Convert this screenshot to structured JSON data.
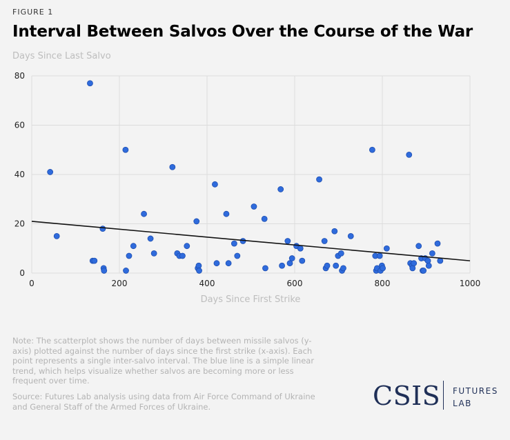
{
  "figure_label": "FIGURE 1",
  "title": "Interval Between Salvos Over the Course of the War",
  "note": "Note: The scatterplot shows the number of days between missile salvos (y-axis) plotted against the number of days since the first strike (x-axis). Each point represents a single inter-salvo interval. The blue line is a simple linear trend, which helps visualize whether salvos are becoming more or less frequent over time.",
  "source": "Source: Futures Lab analysis using data from Air Force Command of Ukraine and General Staff of the Armed Forces of Ukraine.",
  "logo": {
    "main": "CSIS",
    "line1": "FUTURES",
    "line2": "LAB"
  },
  "colors": {
    "point": "#2f6bdc",
    "point_stroke": "#1f4fb0",
    "trend": "#111111",
    "grid": "#dcdcdc",
    "axis_label": "#bdbdbd"
  },
  "chart_data": {
    "type": "scatter",
    "xlabel": "Days Since First Strike",
    "ylabel": "Days Since Last Salvo",
    "xlim": [
      0,
      1000
    ],
    "ylim": [
      0,
      80
    ],
    "xticks": [
      0,
      200,
      400,
      600,
      800,
      1000
    ],
    "yticks": [
      0,
      20,
      40,
      60,
      80
    ],
    "grid": true,
    "trend_line": {
      "x": [
        0,
        1000
      ],
      "y": [
        21,
        5
      ]
    },
    "points": [
      [
        42,
        41
      ],
      [
        57,
        15
      ],
      [
        133,
        77
      ],
      [
        139,
        5
      ],
      [
        143,
        5
      ],
      [
        162,
        18
      ],
      [
        164,
        2
      ],
      [
        165,
        1
      ],
      [
        214,
        50
      ],
      [
        215,
        1
      ],
      [
        222,
        7
      ],
      [
        232,
        11
      ],
      [
        256,
        24
      ],
      [
        271,
        14
      ],
      [
        279,
        8
      ],
      [
        321,
        43
      ],
      [
        332,
        8
      ],
      [
        337,
        7
      ],
      [
        344,
        7
      ],
      [
        354,
        11
      ],
      [
        376,
        21
      ],
      [
        379,
        2
      ],
      [
        381,
        3
      ],
      [
        382,
        1
      ],
      [
        418,
        36
      ],
      [
        422,
        4
      ],
      [
        444,
        24
      ],
      [
        449,
        4
      ],
      [
        462,
        12
      ],
      [
        469,
        7
      ],
      [
        482,
        13
      ],
      [
        507,
        27
      ],
      [
        531,
        22
      ],
      [
        533,
        2
      ],
      [
        568,
        34
      ],
      [
        571,
        3
      ],
      [
        584,
        13
      ],
      [
        589,
        4
      ],
      [
        594,
        6
      ],
      [
        604,
        11
      ],
      [
        613,
        10
      ],
      [
        617,
        5
      ],
      [
        656,
        38
      ],
      [
        668,
        13
      ],
      [
        671,
        2
      ],
      [
        674,
        3
      ],
      [
        691,
        17
      ],
      [
        694,
        3
      ],
      [
        699,
        7
      ],
      [
        706,
        8
      ],
      [
        708,
        1
      ],
      [
        711,
        2
      ],
      [
        728,
        15
      ],
      [
        777,
        50
      ],
      [
        784,
        7
      ],
      [
        786,
        1
      ],
      [
        788,
        2
      ],
      [
        794,
        7
      ],
      [
        796,
        1
      ],
      [
        799,
        3
      ],
      [
        801,
        2
      ],
      [
        810,
        10
      ],
      [
        861,
        48
      ],
      [
        864,
        4
      ],
      [
        868,
        3
      ],
      [
        869,
        2
      ],
      [
        872,
        4
      ],
      [
        883,
        11
      ],
      [
        889,
        6
      ],
      [
        892,
        1
      ],
      [
        894,
        1
      ],
      [
        898,
        6
      ],
      [
        904,
        5
      ],
      [
        906,
        3
      ],
      [
        914,
        8
      ],
      [
        926,
        12
      ],
      [
        932,
        5
      ]
    ]
  }
}
